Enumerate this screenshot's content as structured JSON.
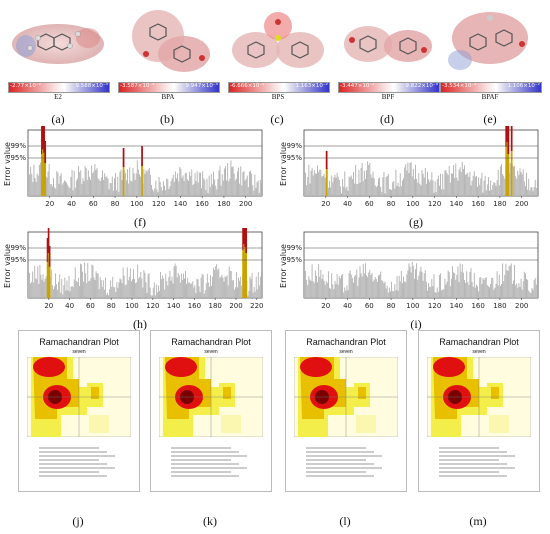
{
  "molecules": [
    {
      "name": "E2",
      "min": "-2.77×10⁻²",
      "max": "9.588×10⁻³",
      "label": "(a)"
    },
    {
      "name": "BPA",
      "min": "-3.587×10⁻²",
      "max": "9.947×10⁻³",
      "label": "(b)"
    },
    {
      "name": "BPS",
      "min": "-6.666×10⁻²",
      "max": "1.163×10⁻²",
      "label": "(c)"
    },
    {
      "name": "BPF",
      "min": "-3.447×10⁻²",
      "max": "9.822×10⁻³",
      "label": "(d)"
    },
    {
      "name": "BPAF",
      "min": "-3.534×10⁻²",
      "max": "1.106×10⁻²",
      "label": "(e)"
    }
  ],
  "error_plots": [
    {
      "label": "(f)",
      "ylabel": "Error value",
      "levels": [
        "99%",
        "95%"
      ],
      "xticks": [
        "20",
        "40",
        "60",
        "80",
        "100",
        "120",
        "140",
        "160",
        "180",
        "200"
      ]
    },
    {
      "label": "(g)",
      "ylabel": "Error value",
      "levels": [
        "99%",
        "95%"
      ],
      "xticks": [
        "20",
        "40",
        "60",
        "80",
        "100",
        "120",
        "140",
        "160",
        "180",
        "200"
      ]
    },
    {
      "label": "(h)",
      "ylabel": "Error value",
      "levels": [
        "99%",
        "95%"
      ],
      "xticks": [
        "20",
        "40",
        "60",
        "80",
        "100",
        "120",
        "140",
        "160",
        "180",
        "200",
        "220"
      ]
    },
    {
      "label": "(i)",
      "ylabel": "Error value",
      "levels": [
        "99%",
        "95%"
      ],
      "xticks": [
        "20",
        "40",
        "60",
        "80",
        "100",
        "120",
        "140",
        "160",
        "180",
        "200"
      ]
    }
  ],
  "rama_plots": [
    {
      "title": "Ramachandran Plot",
      "sub": "seven",
      "label": "(j)"
    },
    {
      "title": "Ramachandran Plot",
      "sub": "seven",
      "label": "(k)"
    },
    {
      "title": "Ramachandran Plot",
      "sub": "seven",
      "label": "(l)"
    },
    {
      "title": "Ramachandran Plot",
      "sub": "seven",
      "label": "(m)"
    }
  ]
}
